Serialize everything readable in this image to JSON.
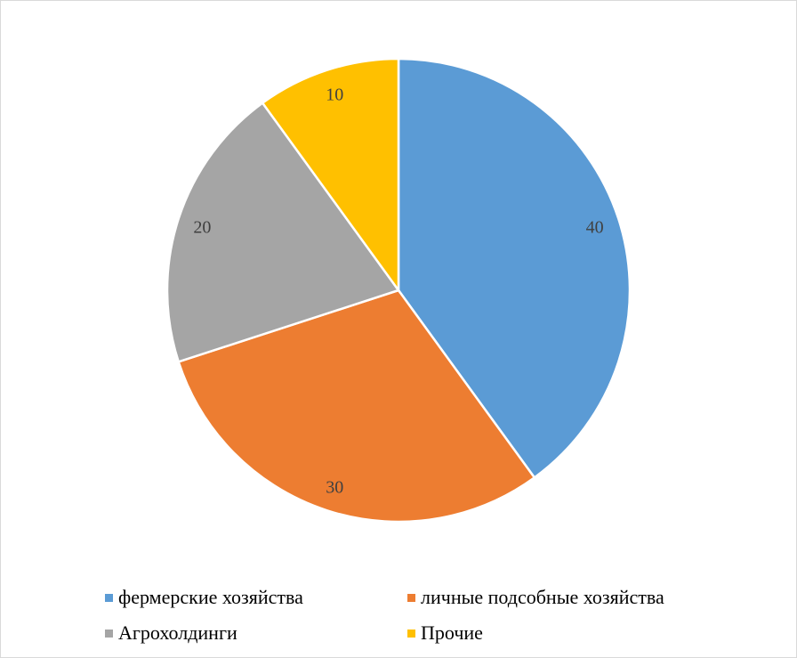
{
  "chart_data": {
    "type": "pie",
    "title": "",
    "categories": [
      "фермерские хозяйства",
      "личные подсобные хозяйства",
      "Агрохолдинги",
      "Прочие"
    ],
    "values": [
      40,
      30,
      20,
      10
    ],
    "colors": [
      "#5B9BD5",
      "#ED7D31",
      "#A5A5A5",
      "#FFC000"
    ],
    "start_angle": "top",
    "direction": "clockwise",
    "data_labels": [
      "40",
      "30",
      "20",
      "10"
    ],
    "legend_placement": "bottom"
  }
}
